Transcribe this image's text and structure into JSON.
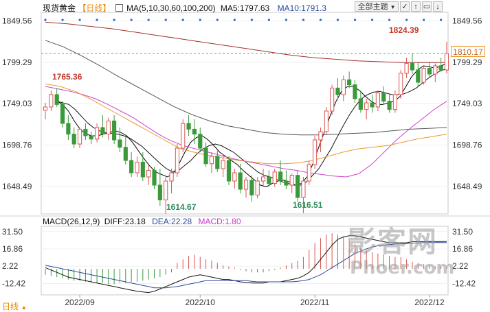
{
  "header": {
    "title": "现货黄金",
    "period": "【日线】",
    "ma_label": "MA(5,10,30,60,100,200)",
    "ma5": "MA5:1797.63",
    "ma10": "MA10:1791.3",
    "theme_button": "全部主题",
    "theme_icon": "dropdown-arrow-icon"
  },
  "toolbar": {
    "icons": [
      "checkbox-icon",
      "arrow-up-icon",
      "window-icon",
      "arrow-down-icon"
    ]
  },
  "macd_header": {
    "label": "MACD(26,12,9)",
    "diff": "DIFF:23.18",
    "dea": "DEA:22.28",
    "macd": "MACD:1.80"
  },
  "period_selector": {
    "label": "日线",
    "icon": "triangle-up-icon"
  },
  "current_price": "1810.17",
  "annotations": {
    "high": "1824.39",
    "peak_left": "1765.36",
    "low1": "1614.67",
    "low2": "1616.51"
  },
  "watermark": {
    "text": "影客网",
    "sub": "Phoer.com"
  },
  "colors": {
    "up": "#d9534f",
    "down": "#3a9a3a",
    "ma5": "#000000",
    "ma10": "#111111",
    "ma30": "#cc44cc",
    "ma60": "#e89a2a",
    "ma100": "#555555",
    "ma200": "#a0302a",
    "diff": "#111111",
    "dea": "#2a4a9a",
    "price_line": "#3aa6c8",
    "accent_period": "#e68a00"
  },
  "chart_data": {
    "type": "candlestick",
    "price_axis": {
      "ticks": [
        1849.56,
        1799.29,
        1749.03,
        1698.76,
        1648.49
      ],
      "tick_labels": [
        "1849.56",
        "1799.29",
        "1749.03",
        "1698.76",
        "1648.49"
      ],
      "ylim": [
        1615,
        1860
      ]
    },
    "macd_axis": {
      "ticks": [
        31.5,
        16.86,
        2.22,
        -12.42
      ],
      "tick_labels": [
        "31.50",
        "16.86",
        "2.22",
        "-12.42"
      ],
      "ylim": [
        -22,
        36
      ]
    },
    "x_labels": [
      "2022/09",
      "2022/10",
      "2022/11",
      "2022/12"
    ],
    "x_label_index": [
      6,
      27,
      47,
      67
    ],
    "candles": [
      [
        1741,
        1750,
        1730,
        1745
      ],
      [
        1745,
        1765,
        1740,
        1760
      ],
      [
        1760,
        1768,
        1745,
        1748
      ],
      [
        1748,
        1752,
        1720,
        1725
      ],
      [
        1725,
        1735,
        1705,
        1712
      ],
      [
        1712,
        1720,
        1695,
        1700
      ],
      [
        1700,
        1720,
        1695,
        1718
      ],
      [
        1718,
        1725,
        1705,
        1710
      ],
      [
        1710,
        1715,
        1700,
        1706
      ],
      [
        1706,
        1725,
        1702,
        1720
      ],
      [
        1720,
        1735,
        1708,
        1712
      ],
      [
        1712,
        1732,
        1705,
        1728
      ],
      [
        1728,
        1735,
        1700,
        1705
      ],
      [
        1705,
        1720,
        1690,
        1696
      ],
      [
        1696,
        1710,
        1675,
        1680
      ],
      [
        1680,
        1690,
        1660,
        1665
      ],
      [
        1665,
        1685,
        1660,
        1678
      ],
      [
        1678,
        1690,
        1655,
        1660
      ],
      [
        1660,
        1675,
        1650,
        1668
      ],
      [
        1668,
        1672,
        1645,
        1650
      ],
      [
        1650,
        1670,
        1625,
        1632
      ],
      [
        1632,
        1660,
        1615,
        1655
      ],
      [
        1655,
        1670,
        1640,
        1665
      ],
      [
        1665,
        1700,
        1660,
        1695
      ],
      [
        1695,
        1730,
        1690,
        1725
      ],
      [
        1725,
        1735,
        1710,
        1718
      ],
      [
        1718,
        1730,
        1700,
        1712
      ],
      [
        1712,
        1720,
        1690,
        1695
      ],
      [
        1695,
        1702,
        1672,
        1676
      ],
      [
        1676,
        1690,
        1665,
        1685
      ],
      [
        1685,
        1692,
        1666,
        1670
      ],
      [
        1670,
        1688,
        1660,
        1680
      ],
      [
        1680,
        1685,
        1650,
        1655
      ],
      [
        1655,
        1670,
        1646,
        1665
      ],
      [
        1665,
        1676,
        1640,
        1645
      ],
      [
        1645,
        1660,
        1635,
        1656
      ],
      [
        1656,
        1662,
        1630,
        1638
      ],
      [
        1638,
        1660,
        1634,
        1655
      ],
      [
        1655,
        1670,
        1650,
        1660
      ],
      [
        1660,
        1668,
        1648,
        1652
      ],
      [
        1652,
        1670,
        1648,
        1666
      ],
      [
        1666,
        1680,
        1650,
        1655
      ],
      [
        1655,
        1668,
        1645,
        1650
      ],
      [
        1650,
        1664,
        1640,
        1662
      ],
      [
        1662,
        1668,
        1630,
        1635
      ],
      [
        1635,
        1660,
        1616,
        1655
      ],
      [
        1655,
        1680,
        1650,
        1675
      ],
      [
        1675,
        1710,
        1670,
        1705
      ],
      [
        1705,
        1720,
        1690,
        1715
      ],
      [
        1715,
        1745,
        1712,
        1740
      ],
      [
        1740,
        1772,
        1735,
        1768
      ],
      [
        1768,
        1780,
        1755,
        1760
      ],
      [
        1760,
        1783,
        1752,
        1778
      ],
      [
        1778,
        1788,
        1768,
        1772
      ],
      [
        1772,
        1778,
        1750,
        1755
      ],
      [
        1755,
        1765,
        1738,
        1742
      ],
      [
        1742,
        1755,
        1730,
        1750
      ],
      [
        1750,
        1760,
        1738,
        1745
      ],
      [
        1745,
        1765,
        1740,
        1762
      ],
      [
        1762,
        1770,
        1748,
        1752
      ],
      [
        1752,
        1760,
        1738,
        1742
      ],
      [
        1742,
        1765,
        1738,
        1760
      ],
      [
        1760,
        1790,
        1755,
        1786
      ],
      [
        1786,
        1805,
        1780,
        1798
      ],
      [
        1798,
        1810,
        1785,
        1790
      ],
      [
        1790,
        1800,
        1770,
        1775
      ],
      [
        1775,
        1795,
        1772,
        1792
      ],
      [
        1792,
        1800,
        1780,
        1785
      ],
      [
        1785,
        1798,
        1775,
        1795
      ],
      [
        1795,
        1805,
        1788,
        1790
      ],
      [
        1790,
        1824.39,
        1786,
        1810
      ]
    ],
    "ma_series": [
      {
        "name": "MA5",
        "start": 2,
        "values": [
          1752,
          1748,
          1740,
          1728,
          1718,
          1712,
          1710,
          1710,
          1712,
          1714,
          1716,
          1714,
          1710,
          1702,
          1692,
          1682,
          1673,
          1666,
          1663,
          1660,
          1664,
          1676,
          1690,
          1702,
          1708,
          1710,
          1705,
          1698,
          1690,
          1685,
          1680,
          1675,
          1668,
          1662,
          1656,
          1650,
          1648,
          1652,
          1655,
          1656,
          1654,
          1650,
          1652,
          1660,
          1676,
          1696,
          1715,
          1735,
          1752,
          1765,
          1770,
          1770,
          1765,
          1758,
          1752,
          1748,
          1748,
          1750,
          1752,
          1758,
          1770,
          1782,
          1790,
          1795,
          1794,
          1792,
          1795,
          1797.63
        ]
      },
      {
        "name": "MA10",
        "start": 2,
        "values": [
          1752,
          1750,
          1748,
          1742,
          1734,
          1726,
          1720,
          1716,
          1714,
          1713,
          1712,
          1710,
          1707,
          1702,
          1697,
          1690,
          1683,
          1676,
          1670,
          1666,
          1668,
          1674,
          1680,
          1688,
          1694,
          1698,
          1700,
          1698,
          1694,
          1690,
          1684,
          1678,
          1672,
          1666,
          1662,
          1660,
          1657,
          1654,
          1652,
          1650,
          1650,
          1654,
          1662,
          1670,
          1682,
          1694,
          1708,
          1722,
          1735,
          1746,
          1755,
          1760,
          1763,
          1764,
          1762,
          1760,
          1760,
          1761,
          1764,
          1768,
          1774,
          1780,
          1785,
          1789,
          1791.3
        ]
      },
      {
        "name": "MA30",
        "start": 0,
        "values": [
          1770,
          1767,
          1764,
          1760,
          1755,
          1748,
          1740,
          1732,
          1722,
          1712,
          1704,
          1698,
          1694,
          1690,
          1686,
          1682,
          1679,
          1676,
          1673,
          1670,
          1668,
          1665,
          1663,
          1661,
          1660,
          1664,
          1675,
          1690,
          1705,
          1718,
          1730,
          1742,
          1752
        ]
      },
      {
        "name": "MA60",
        "start": 0,
        "values": [
          1773,
          1770,
          1764,
          1755,
          1745,
          1735,
          1725,
          1715,
          1705,
          1695,
          1690,
          1686,
          1683,
          1680,
          1678,
          1676,
          1676,
          1677,
          1680,
          1685,
          1690,
          1694,
          1696,
          1698,
          1702,
          1706,
          1709,
          1712
        ]
      },
      {
        "name": "MA100",
        "start": 0,
        "values": [
          1826,
          1818,
          1807,
          1795,
          1782,
          1770,
          1758,
          1746,
          1736,
          1728,
          1722,
          1718,
          1714,
          1712,
          1711,
          1711,
          1712,
          1713,
          1714,
          1716,
          1718,
          1719,
          1720
        ]
      },
      {
        "name": "MA200",
        "start": 0,
        "values": [
          1848,
          1846,
          1843,
          1840,
          1836,
          1832,
          1828,
          1824,
          1820,
          1816,
          1812,
          1808,
          1805,
          1803,
          1801,
          1800,
          1799,
          1799,
          1799
        ]
      }
    ],
    "macd": {
      "hist": [
        -5,
        -6,
        -7,
        -8,
        -9,
        -10,
        -10,
        -11,
        -11,
        -12,
        -12,
        -13,
        -13,
        -12,
        -12,
        -11,
        -11,
        -10,
        -9,
        -8,
        -7,
        -5,
        -3,
        5,
        8,
        11,
        12,
        10,
        8,
        7,
        5,
        3,
        2,
        1,
        -1,
        -2,
        -3,
        -3,
        -3,
        -2,
        -1,
        1,
        3,
        5,
        7,
        10,
        16,
        22,
        26,
        29,
        30,
        29,
        27,
        24,
        21,
        18,
        16,
        14,
        13,
        12,
        11,
        10,
        10,
        8,
        6,
        5,
        4,
        3,
        2,
        1.8,
        1.8
      ],
      "diff": [
        1,
        -1,
        -3,
        -5,
        -7,
        -8,
        -9,
        -10,
        -11,
        -12,
        -13,
        -14,
        -15,
        -16,
        -17,
        -18,
        -19,
        -19.5,
        -20,
        -19,
        -17,
        -15,
        -13,
        -11,
        -9,
        -7,
        -6,
        -5,
        -6,
        -7,
        -8,
        -9,
        -9,
        -10,
        -11,
        -11.5,
        -12,
        -12,
        -12,
        -11,
        -11,
        -11,
        -10,
        -9,
        -8,
        -6,
        -3,
        2,
        8,
        14,
        20,
        25,
        27,
        28,
        28,
        27,
        26,
        25,
        24,
        23,
        22,
        22,
        22,
        22,
        23,
        23,
        23,
        23.18,
        23,
        23,
        23.18
      ],
      "dea": [
        3,
        2,
        1,
        0,
        -1,
        -2,
        -3,
        -4,
        -5,
        -6,
        -7,
        -8,
        -9,
        -10,
        -11,
        -12,
        -13,
        -14,
        -15,
        -16,
        -16,
        -16,
        -15.5,
        -15,
        -14,
        -13,
        -12,
        -11,
        -10,
        -10,
        -10,
        -10,
        -10,
        -10,
        -10,
        -10,
        -10.5,
        -11,
        -11,
        -11,
        -11,
        -11,
        -11,
        -11,
        -10.5,
        -10,
        -9,
        -7,
        -5,
        -2,
        1,
        4,
        7,
        10,
        13,
        15,
        17,
        18.5,
        19.5,
        20,
        20.5,
        21,
        21.2,
        21.5,
        21.8,
        22,
        22.1,
        22.2,
        22.28,
        22.28,
        22.28
      ]
    }
  }
}
